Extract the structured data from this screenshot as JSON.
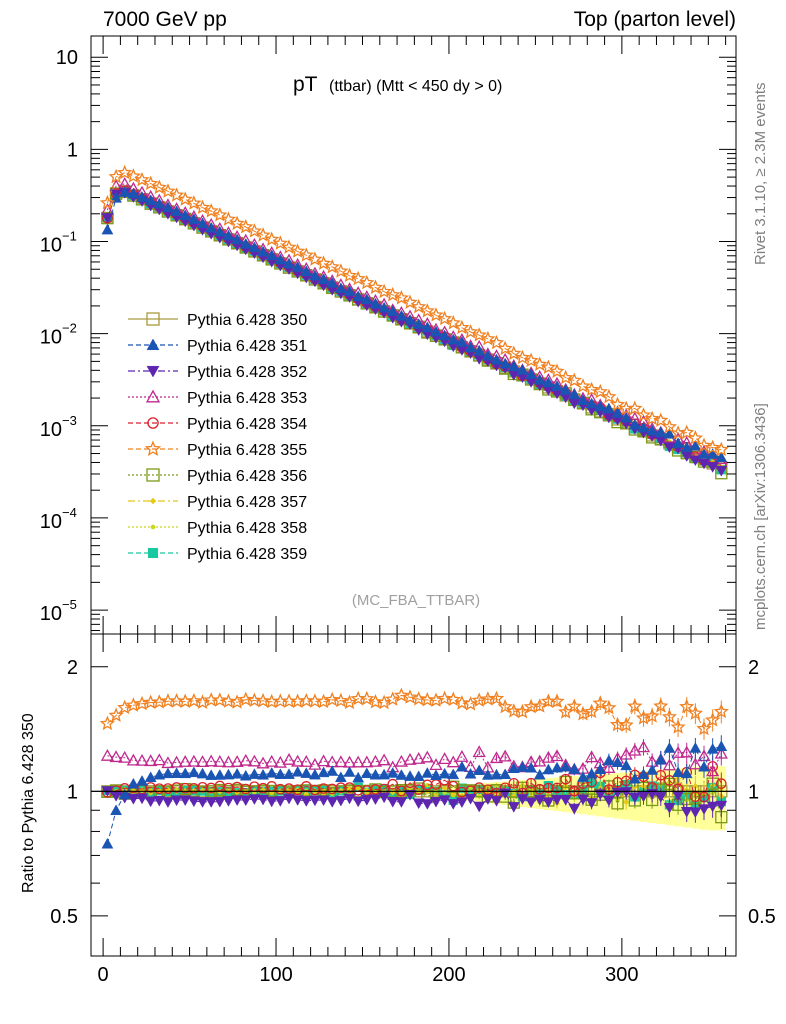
{
  "header": {
    "left": "7000 GeV pp",
    "right": "Top (parton level)"
  },
  "side": {
    "rivet": "Rivet 3.1.10, ≥ 2.3M events",
    "mcplots": "mcplots.cern.ch [arXiv:1306.3436]"
  },
  "chart_data": [
    {
      "type": "scatter",
      "panel": "main",
      "title_main": "pT",
      "title_sub": "(ttbar) (Mtt < 450 dy > 0)",
      "watermark": "(MC_FBA_TTBAR)",
      "xlabel": "",
      "ylabel": "",
      "yscale": "log",
      "xlim": [
        -7,
        366
      ],
      "ylim": [
        5.5e-06,
        17
      ],
      "x_ticks": [
        0,
        100,
        200,
        300
      ],
      "y_tick_exponents": [
        -5,
        -4,
        -3,
        -2,
        -1,
        0,
        1
      ],
      "y_tick_labels": {
        "e-5": "10",
        "e-4": "10",
        "e-3": "10",
        "e-2": "10",
        "e-1": "10",
        "one": "1",
        "ten": "10",
        "exp-5": "−5",
        "exp-4": "−4",
        "exp-3": "−3",
        "exp-2": "−2",
        "exp-1": "−1"
      },
      "reference_shape": {
        "bin_width": 5,
        "x_range": [
          0,
          360
        ],
        "first_bins": [
          [
            2.5,
            0.18
          ],
          [
            7.5,
            0.33
          ],
          [
            12.5,
            0.35
          ]
        ],
        "peak_value": 0.35,
        "peak_x": 12.5,
        "value_at_350": 0.00041
      },
      "series": [
        {
          "name": "Pythia 6.428 350",
          "color": "#a89a3b",
          "marker": "open-square",
          "line": "solid",
          "low_pt_ratio": 1.0,
          "plateau_ratio": 1.0,
          "hi_ratio": 1.0
        },
        {
          "name": "Pythia 6.428 351",
          "color": "#1b55b3",
          "marker": "filled-triangle-up",
          "line": "dashed",
          "low_pt_ratio": 0.75,
          "plateau_ratio": 1.1,
          "hi_ratio": 1.18
        },
        {
          "name": "Pythia 6.428 352",
          "color": "#5e26b0",
          "marker": "filled-triangle-down",
          "line": "dashdot",
          "low_pt_ratio": 1.0,
          "plateau_ratio": 0.95,
          "hi_ratio": 0.96
        },
        {
          "name": "Pythia 6.428 353",
          "color": "#c0288e",
          "marker": "open-triangle-up",
          "line": "dotted",
          "low_pt_ratio": 1.22,
          "plateau_ratio": 1.18,
          "hi_ratio": 1.2
        },
        {
          "name": "Pythia 6.428 354",
          "color": "#d8222b",
          "marker": "open-circle",
          "line": "dashed",
          "low_pt_ratio": 1.0,
          "plateau_ratio": 1.02,
          "hi_ratio": 1.05
        },
        {
          "name": "Pythia 6.428 355",
          "color": "#f08020",
          "marker": "open-star",
          "line": "dashed",
          "low_pt_ratio": 1.45,
          "plateau_ratio": 1.65,
          "hi_ratio": 1.45
        },
        {
          "name": "Pythia 6.428 356",
          "color": "#7a9a18",
          "marker": "open-square",
          "line": "dotted",
          "low_pt_ratio": 1.0,
          "plateau_ratio": 1.0,
          "hi_ratio": 0.97
        },
        {
          "name": "Pythia 6.428 357",
          "color": "#e8c818",
          "marker": "small-diamond",
          "line": "dashdot",
          "low_pt_ratio": 1.0,
          "plateau_ratio": 1.0,
          "hi_ratio": 1.0
        },
        {
          "name": "Pythia 6.428 358",
          "color": "#c8d818",
          "marker": "small-dot",
          "line": "dotted",
          "low_pt_ratio": 1.0,
          "plateau_ratio": 1.0,
          "hi_ratio": 1.0
        },
        {
          "name": "Pythia 6.428 359",
          "color": "#18c8a0",
          "marker": "filled-square",
          "line": "dashed",
          "low_pt_ratio": 1.0,
          "plateau_ratio": 1.0,
          "hi_ratio": 0.98
        }
      ]
    },
    {
      "type": "scatter",
      "panel": "ratio",
      "xlabel": "",
      "ylabel": "Ratio to Pythia 6.428 350",
      "yscale": "log",
      "xlim": [
        -7,
        366
      ],
      "ylim": [
        0.4,
        2.4
      ],
      "y_ticks": [
        0.5,
        1,
        2
      ],
      "y_tick_labels": [
        "0.5",
        "1",
        "2"
      ],
      "reference_line": 1,
      "band_color": "#ffff99"
    }
  ]
}
